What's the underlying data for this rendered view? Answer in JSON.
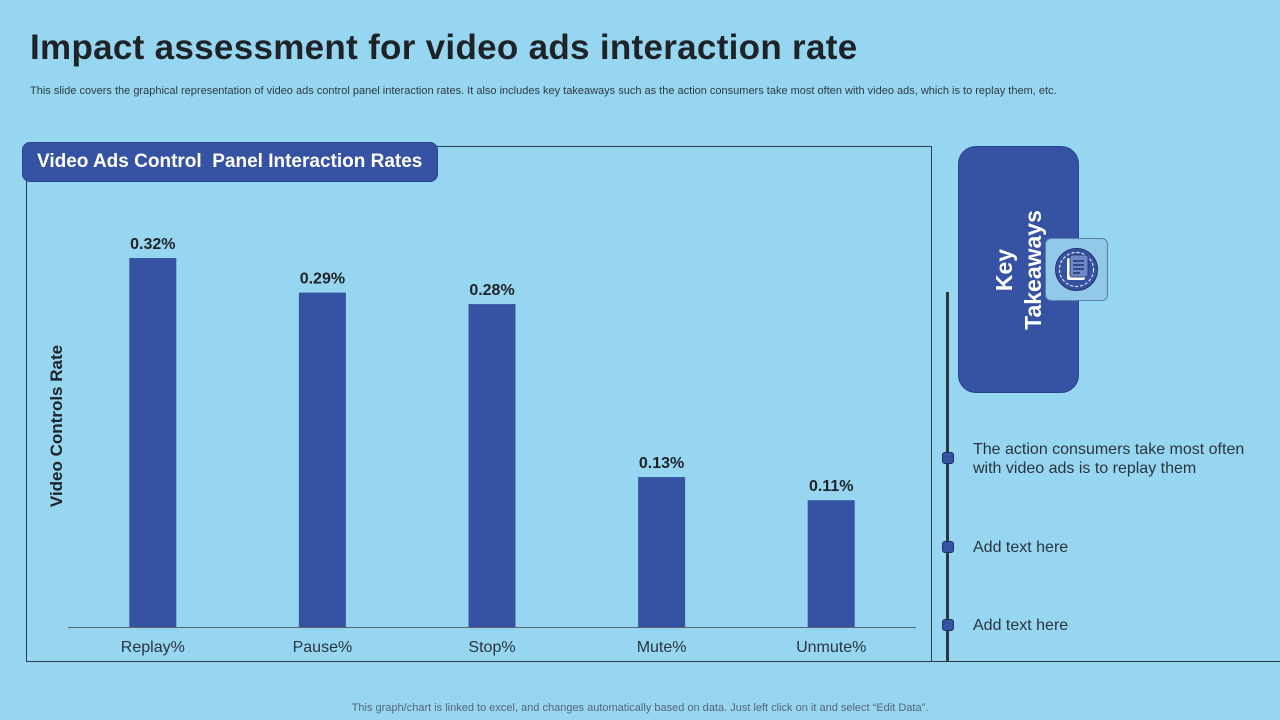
{
  "slide": {
    "title": "Impact assessment for video ads interaction rate",
    "subtitle": "This slide covers the graphical representation of video ads control panel interaction rates. It also includes key takeaways such as the action consumers take most often with video ads, which is to replay them, etc.",
    "footer": "This graph/chart is linked to excel,  and changes automatically based on data. Just left click on it and select “Edit Data”."
  },
  "chart_data": {
    "type": "bar",
    "title": "Video Ads Control  Panel Interaction Rates",
    "xlabel": "",
    "ylabel": "Video Controls Rate",
    "categories": [
      "Replay%",
      "Pause%",
      "Stop%",
      "Mute%",
      "Unmute%"
    ],
    "values": [
      0.32,
      0.29,
      0.28,
      0.13,
      0.11
    ],
    "value_labels": [
      "0.32%",
      "0.29%",
      "0.28%",
      "0.13%",
      "0.11%"
    ],
    "ylim": [
      0,
      0.32
    ],
    "grid": false,
    "bar_color": "#3652a3"
  },
  "key_takeaways": {
    "heading": "Key\nTakeaways",
    "icon": "document-icon",
    "items": [
      "The action consumers take most often with video ads is to replay them",
      "Add text here",
      "Add text here"
    ]
  }
}
